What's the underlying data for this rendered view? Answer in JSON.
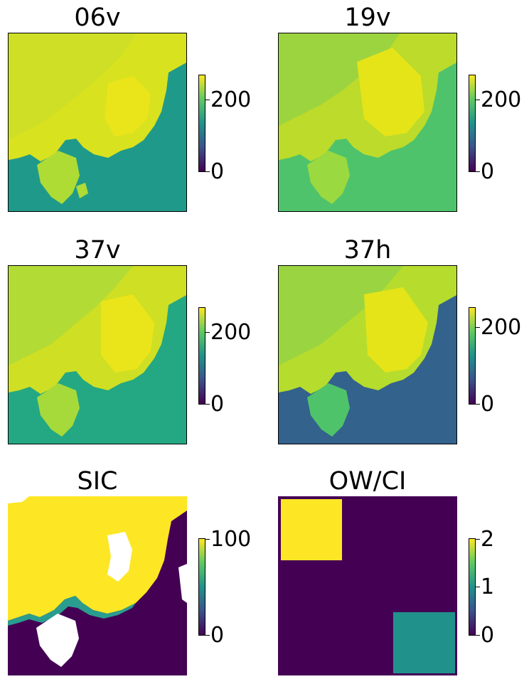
{
  "chart_data": [
    {
      "type": "heatmap",
      "title": "06v",
      "colormap": "viridis",
      "colorbar": {
        "ticks": [
          0,
          200
        ],
        "range": [
          0,
          270
        ]
      }
    },
    {
      "type": "heatmap",
      "title": "19v",
      "colormap": "viridis",
      "colorbar": {
        "ticks": [
          0,
          200
        ],
        "range": [
          0,
          270
        ]
      }
    },
    {
      "type": "heatmap",
      "title": "37v",
      "colormap": "viridis",
      "colorbar": {
        "ticks": [
          0,
          200
        ],
        "range": [
          0,
          270
        ]
      }
    },
    {
      "type": "heatmap",
      "title": "37h",
      "colormap": "viridis",
      "colorbar": {
        "ticks": [
          0,
          200
        ],
        "range": [
          0,
          250
        ]
      }
    },
    {
      "type": "heatmap",
      "title": "SIC",
      "colormap": "viridis",
      "colorbar": {
        "ticks": [
          0,
          100
        ],
        "range": [
          0,
          100
        ]
      }
    },
    {
      "type": "heatmap",
      "title": "OW/CI",
      "colormap": "viridis",
      "colorbar": {
        "ticks": [
          0,
          1,
          2
        ],
        "range": [
          0,
          2
        ]
      },
      "regions": [
        {
          "value": 2,
          "location": "top-left"
        },
        {
          "value": 1,
          "location": "bottom-right"
        }
      ],
      "background_value": 0
    }
  ],
  "colors": {
    "viridis_low": "#440154",
    "viridis_mid": "#21918c",
    "viridis_high": "#fde725",
    "ice_yellow": "#e9e61f",
    "no_data": "#ffffff"
  }
}
